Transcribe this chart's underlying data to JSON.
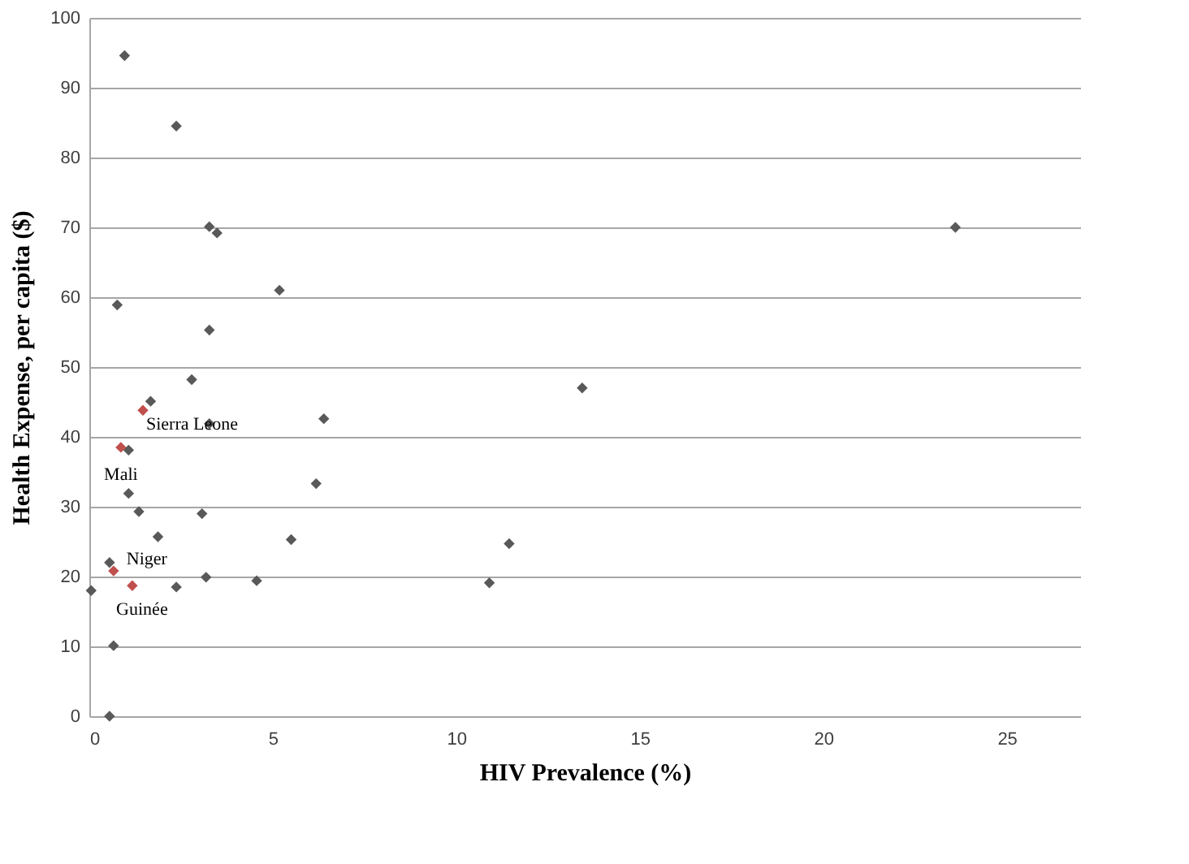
{
  "chart_data": {
    "type": "scatter",
    "xlabel": "HIV Prevalence (%)",
    "ylabel": "Health Expense, per capita ($)",
    "xlim": [
      0,
      27
    ],
    "xticks": [
      0,
      5,
      10,
      15,
      20,
      25
    ],
    "ylim": [
      0,
      100
    ],
    "yticks": [
      0,
      10,
      20,
      30,
      40,
      50,
      60,
      70,
      80,
      90,
      100
    ],
    "grid": "y",
    "marker": "diamond",
    "legend": false,
    "series": [
      {
        "color": "#595959",
        "x": [
          0.96,
          2.37,
          3.27,
          3.48,
          5.18,
          0.76,
          3.27,
          2.79,
          1.67,
          3.27,
          6.39,
          1.07,
          1.07,
          6.18,
          1.35,
          3.07,
          1.87,
          5.5,
          0.55,
          3.18,
          4.56,
          2.37,
          0.05,
          0.66,
          0.55,
          11.44,
          10.9,
          13.43,
          23.6
        ],
        "values": [
          94.6,
          84.5,
          70.1,
          69.2,
          61.0,
          58.9,
          55.3,
          48.2,
          45.1,
          41.9,
          42.6,
          38.1,
          31.9,
          33.3,
          29.3,
          29.0,
          25.7,
          25.3,
          22.0,
          19.9,
          19.4,
          18.5,
          18.0,
          10.1,
          0,
          24.7,
          19.1,
          47.0,
          70.0
        ]
      },
      {
        "color": "#c0504d",
        "x": [
          1.46,
          0.86,
          0.66,
          1.17
        ],
        "values": [
          43.8,
          38.5,
          20.8,
          18.7
        ]
      }
    ],
    "annotations": [
      {
        "text": "Sierra Leone",
        "x": 1.46,
        "y": 43.8
      },
      {
        "text": "Mali",
        "x": 0.86,
        "y": 38.5
      },
      {
        "text": "Niger",
        "x": 0.66,
        "y": 20.8
      },
      {
        "text": "Guinée",
        "x": 1.17,
        "y": 18.7
      }
    ]
  }
}
